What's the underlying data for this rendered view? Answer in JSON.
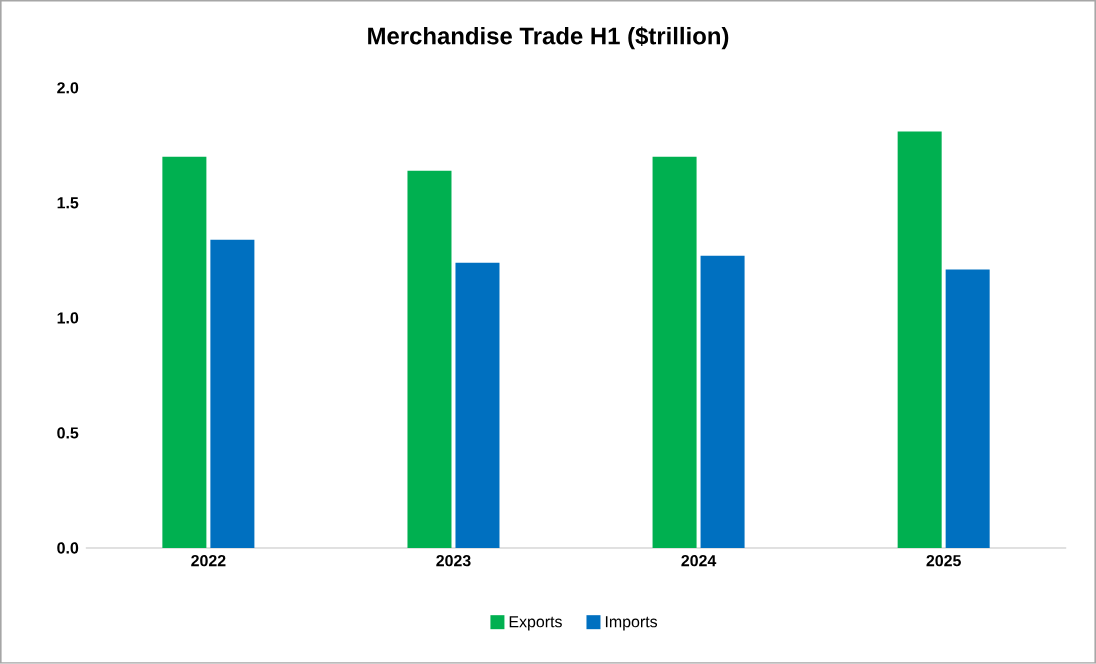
{
  "chart_data": {
    "type": "bar",
    "title": "Merchandise Trade H1 ($trillion)",
    "categories": [
      "2022",
      "2023",
      "2024",
      "2025"
    ],
    "series": [
      {
        "name": "Exports",
        "color": "#00b050",
        "values": [
          1.7,
          1.64,
          1.7,
          1.81
        ]
      },
      {
        "name": "Imports",
        "color": "#0070c0",
        "values": [
          1.34,
          1.24,
          1.27,
          1.21
        ]
      }
    ],
    "ylim": [
      0,
      2.0
    ],
    "yticks": [
      {
        "value": 0,
        "label": "0.0"
      },
      {
        "value": 0.5,
        "label": "0.5"
      },
      {
        "value": 1.0,
        "label": "1.0"
      },
      {
        "value": 1.5,
        "label": "1.5"
      },
      {
        "value": 2.0,
        "label": "2.0"
      }
    ],
    "grid": false,
    "legend": "bottom"
  }
}
